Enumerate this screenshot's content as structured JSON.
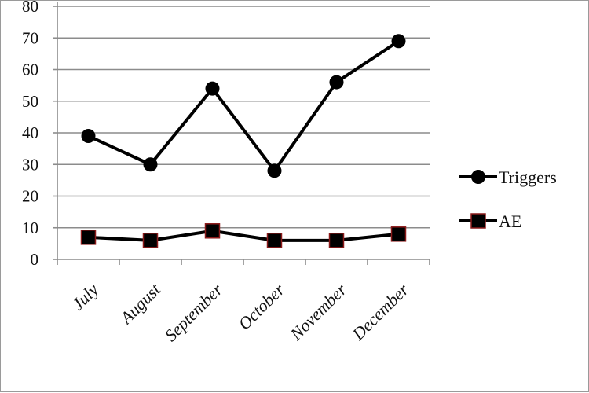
{
  "chart_data": {
    "type": "line",
    "categories": [
      "July",
      "August",
      "September",
      "October",
      "November",
      "December"
    ],
    "series": [
      {
        "name": "Triggers",
        "values": [
          39,
          30,
          54,
          28,
          56,
          69
        ],
        "marker": "circle",
        "color": "#000000"
      },
      {
        "name": "AE",
        "values": [
          7,
          6,
          9,
          6,
          6,
          8
        ],
        "marker": "square",
        "color": "#000000",
        "marker_edge": "#8b1a1a"
      }
    ],
    "ylim": [
      0,
      80
    ],
    "yticks": [
      0,
      10,
      20,
      30,
      40,
      50,
      60,
      70,
      80
    ],
    "grid": true,
    "legend": "right",
    "xlabel": "",
    "ylabel": ""
  }
}
